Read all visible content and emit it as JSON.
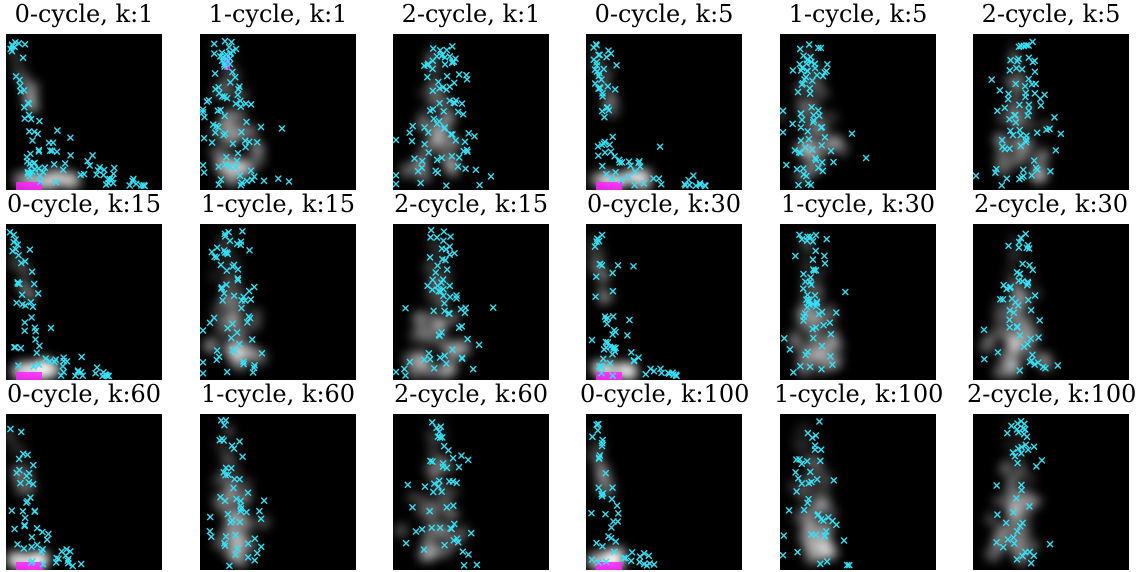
{
  "colors": {
    "background": "#000000",
    "density": "#ffffff",
    "scatter_marker": "#33e0f5",
    "highlight": "#ff22ff"
  },
  "chart_data": {
    "type": "scatter",
    "grid": false,
    "rows": 3,
    "cols": 6,
    "marker": "x",
    "panels": [
      {
        "title": "0-cycle, k:1",
        "cycle": 0,
        "k": 1
      },
      {
        "title": "1-cycle, k:1",
        "cycle": 1,
        "k": 1
      },
      {
        "title": "2-cycle, k:1",
        "cycle": 2,
        "k": 1
      },
      {
        "title": "0-cycle, k:5",
        "cycle": 0,
        "k": 5
      },
      {
        "title": "1-cycle, k:5",
        "cycle": 1,
        "k": 5
      },
      {
        "title": "2-cycle, k:5",
        "cycle": 2,
        "k": 5
      },
      {
        "title": "0-cycle, k:15",
        "cycle": 0,
        "k": 15
      },
      {
        "title": "1-cycle, k:15",
        "cycle": 1,
        "k": 15
      },
      {
        "title": "2-cycle, k:15",
        "cycle": 2,
        "k": 15
      },
      {
        "title": "0-cycle, k:30",
        "cycle": 0,
        "k": 30
      },
      {
        "title": "1-cycle, k:30",
        "cycle": 1,
        "k": 30
      },
      {
        "title": "2-cycle, k:30",
        "cycle": 2,
        "k": 30
      },
      {
        "title": "0-cycle, k:60",
        "cycle": 0,
        "k": 60
      },
      {
        "title": "1-cycle, k:60",
        "cycle": 1,
        "k": 60
      },
      {
        "title": "2-cycle, k:60",
        "cycle": 2,
        "k": 60
      },
      {
        "title": "0-cycle, k:100",
        "cycle": 0,
        "k": 100
      },
      {
        "title": "1-cycle, k:100",
        "cycle": 1,
        "k": 100
      },
      {
        "title": "2-cycle, k:100",
        "cycle": 2,
        "k": 100
      }
    ]
  }
}
